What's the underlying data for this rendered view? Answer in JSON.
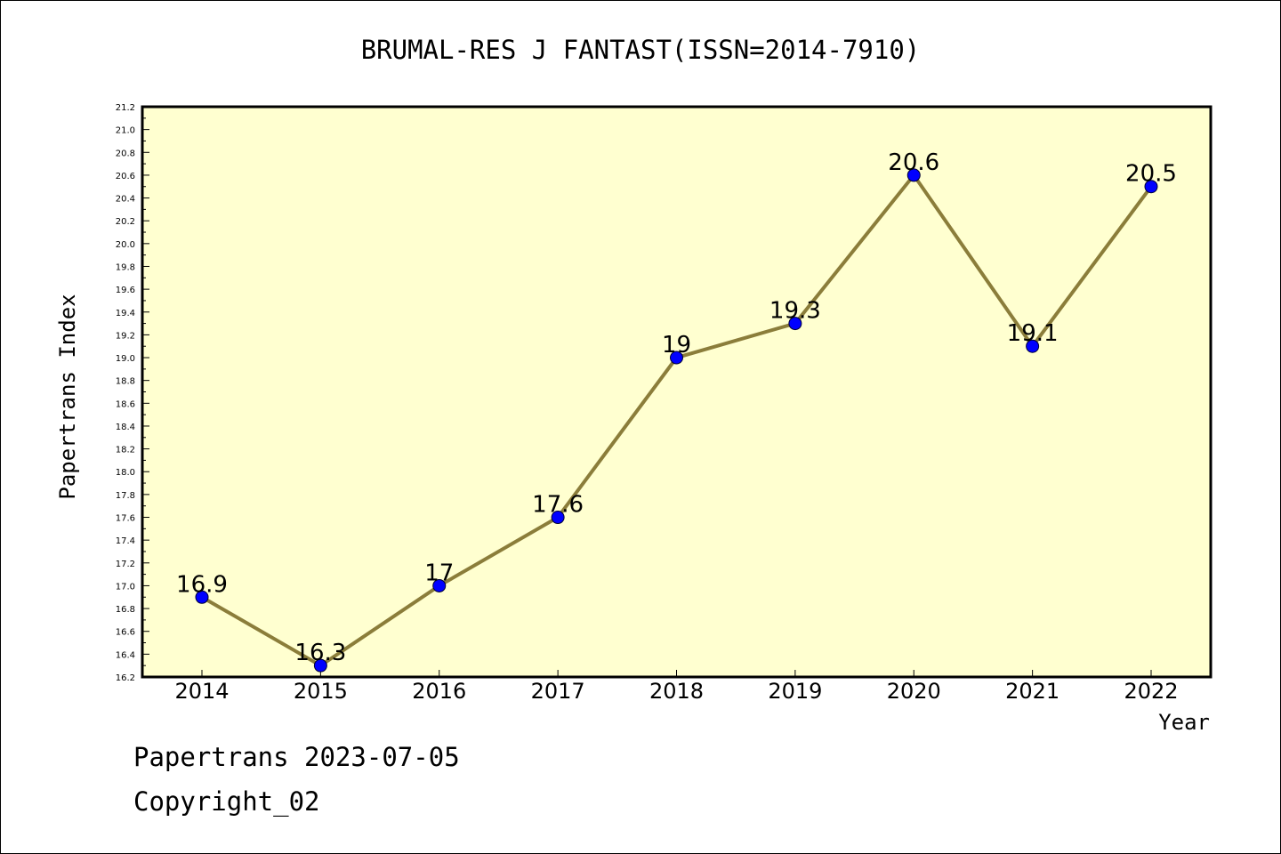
{
  "chart_data": {
    "type": "line",
    "title": "BRUMAL-RES J FANTAST(ISSN=2014-7910)",
    "xlabel": "Year",
    "ylabel": "Papertrans Index",
    "categories": [
      "2014",
      "2015",
      "2016",
      "2017",
      "2018",
      "2019",
      "2020",
      "2021",
      "2022"
    ],
    "values": [
      16.9,
      16.3,
      17.0,
      17.6,
      19.0,
      19.3,
      20.6,
      19.1,
      20.5
    ],
    "data_labels": [
      "16.9",
      "16.3",
      "17",
      "17.6",
      "19",
      "19.3",
      "20.6",
      "19.1",
      "20.5"
    ],
    "ylim": [
      16.2,
      21.2
    ],
    "yticks": [
      "16.2",
      "16.4",
      "16.6",
      "16.8",
      "17.0",
      "17.2",
      "17.4",
      "17.6",
      "17.8",
      "18.0",
      "18.2",
      "18.4",
      "18.6",
      "18.8",
      "19.0",
      "19.2",
      "19.4",
      "19.6",
      "19.8",
      "20.0",
      "20.2",
      "20.4",
      "20.6",
      "20.8",
      "21.0",
      "21.2"
    ],
    "grid": false,
    "colors": {
      "plot_background": "#ffffd0",
      "line": "#8b7d3a",
      "marker": "#0000ff"
    }
  },
  "footer": {
    "line1": "Papertrans 2023-07-05",
    "line2": "Copyright_02"
  }
}
